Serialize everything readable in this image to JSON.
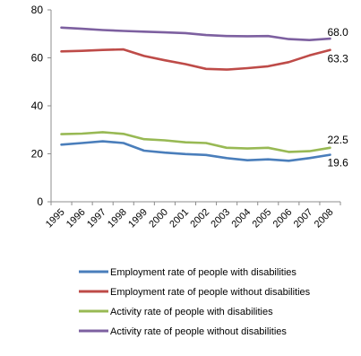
{
  "chart_data": {
    "type": "line",
    "title": "",
    "xlabel": "",
    "ylabel": "",
    "ylim": [
      0,
      80
    ],
    "yticks": [
      0,
      20,
      40,
      60,
      80
    ],
    "grid": false,
    "legend_position": "bottom",
    "categories": [
      "1995",
      "1996",
      "1997",
      "1998",
      "1999",
      "2000",
      "2001",
      "2002",
      "2003",
      "2004",
      "2005",
      "2006",
      "2007",
      "2008"
    ],
    "series": [
      {
        "name": "Employment rate of people with disabilities",
        "color": "#4a7ebb",
        "values": [
          23.8,
          24.5,
          25.2,
          24.5,
          21.3,
          20.5,
          19.9,
          19.5,
          18.2,
          17.3,
          17.7,
          17.1,
          18.2,
          19.6
        ],
        "end_label": "19.6"
      },
      {
        "name": "Employment rate of people without disabilities",
        "color": "#be4b48",
        "values": [
          62.7,
          62.9,
          63.3,
          63.5,
          60.8,
          59.0,
          57.4,
          55.4,
          55.1,
          55.7,
          56.5,
          58.2,
          61.0,
          63.3
        ],
        "end_label": "63.3"
      },
      {
        "name": "Activity rate of people with disabilities",
        "color": "#98b954",
        "values": [
          28.2,
          28.4,
          29.0,
          28.3,
          26.1,
          25.6,
          24.8,
          24.5,
          22.5,
          22.2,
          22.5,
          20.8,
          21.1,
          22.5
        ],
        "end_label": "22.5"
      },
      {
        "name": "Activity rate of people without disabilities",
        "color": "#7d60a0",
        "values": [
          72.6,
          72.1,
          71.6,
          71.2,
          70.9,
          70.6,
          70.3,
          69.5,
          69.1,
          69.0,
          69.1,
          67.8,
          67.4,
          68.0
        ],
        "end_label": "68.0"
      }
    ]
  }
}
